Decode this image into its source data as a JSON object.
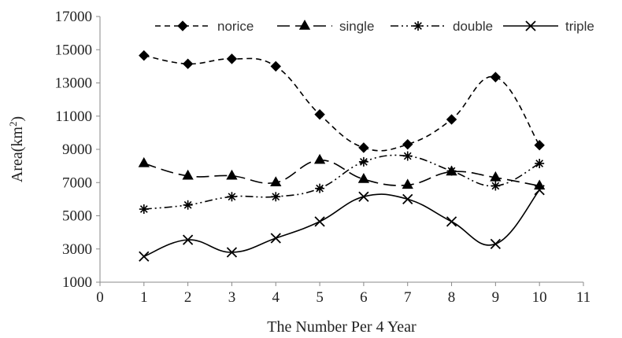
{
  "chart_data": {
    "type": "line",
    "xlabel": "The Number Per 4 Year",
    "ylabel": "Area(km",
    "ylabel_sup": "2",
    "ylabel_suffix": ")",
    "xlim": [
      0,
      11
    ],
    "ylim": [
      1000,
      17000
    ],
    "x_ticks": [
      "0",
      "1",
      "2",
      "3",
      "4",
      "5",
      "6",
      "7",
      "8",
      "9",
      "10",
      "11"
    ],
    "y_ticks": [
      "1000",
      "3000",
      "5000",
      "7000",
      "9000",
      "11000",
      "13000",
      "15000",
      "17000"
    ],
    "grid": false,
    "legend_position": "top",
    "x": [
      1,
      2,
      3,
      4,
      5,
      6,
      7,
      8,
      9,
      10
    ],
    "series": [
      {
        "name": "norice",
        "marker": "diamond",
        "line_style": "short-dash",
        "values": [
          14650,
          14150,
          14450,
          14000,
          11100,
          9100,
          9300,
          10800,
          13350,
          9250
        ]
      },
      {
        "name": "single",
        "marker": "triangle",
        "line_style": "long-dash",
        "values": [
          8150,
          7400,
          7400,
          7000,
          8350,
          7200,
          6850,
          7650,
          7300,
          6800
        ]
      },
      {
        "name": "double",
        "marker": "asterisk",
        "line_style": "dash-dot-dot",
        "values": [
          5400,
          5650,
          6150,
          6150,
          6650,
          8250,
          8600,
          7700,
          6800,
          8150
        ]
      },
      {
        "name": "triple",
        "marker": "x",
        "line_style": "solid",
        "values": [
          2550,
          3550,
          2800,
          3650,
          4650,
          6150,
          6000,
          4650,
          3300,
          6550
        ]
      }
    ],
    "colors": {
      "series": "#000000",
      "axis": "#888888",
      "text": "#222222"
    }
  }
}
